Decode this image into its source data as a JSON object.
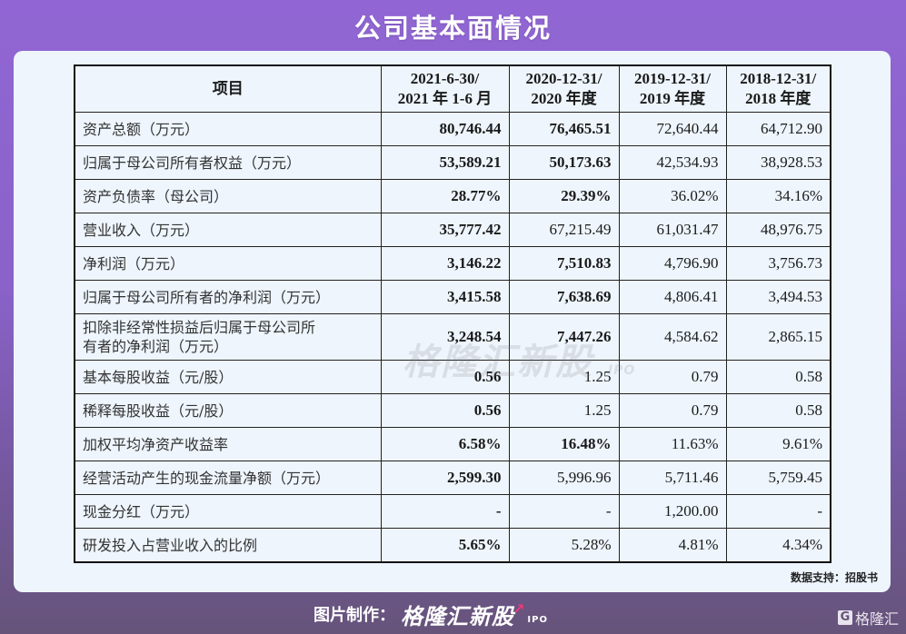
{
  "header": {
    "title": "公司基本面情况"
  },
  "table": {
    "columns": [
      "项目",
      "2021-6-30/\n2021 年 1-6 月",
      "2020-12-31/\n2020 年度",
      "2019-12-31/\n2019 年度",
      "2018-12-31/\n2018 年度"
    ],
    "column_lines": [
      [
        "项目"
      ],
      [
        "2021-6-30/",
        "2021 年 1-6 月"
      ],
      [
        "2020-12-31/",
        "2020 年度"
      ],
      [
        "2019-12-31/",
        "2019 年度"
      ],
      [
        "2018-12-31/",
        "2018 年度"
      ]
    ],
    "rows": [
      {
        "label": "资产总额（万元）",
        "values": [
          "80,746.44",
          "76,465.51",
          "72,640.44",
          "64,712.90"
        ],
        "bold": [
          true,
          true,
          false,
          false
        ]
      },
      {
        "label": "归属于母公司所有者权益（万元）",
        "values": [
          "53,589.21",
          "50,173.63",
          "42,534.93",
          "38,928.53"
        ],
        "bold": [
          true,
          true,
          false,
          false
        ]
      },
      {
        "label": "资产负债率（母公司）",
        "values": [
          "28.77%",
          "29.39%",
          "36.02%",
          "34.16%"
        ],
        "bold": [
          true,
          true,
          false,
          false
        ]
      },
      {
        "label": "营业收入（万元）",
        "values": [
          "35,777.42",
          "67,215.49",
          "61,031.47",
          "48,976.75"
        ],
        "bold": [
          true,
          false,
          false,
          false
        ]
      },
      {
        "label": "净利润（万元）",
        "values": [
          "3,146.22",
          "7,510.83",
          "4,796.90",
          "3,756.73"
        ],
        "bold": [
          true,
          true,
          false,
          false
        ]
      },
      {
        "label": "归属于母公司所有者的净利润（万元）",
        "values": [
          "3,415.58",
          "7,638.69",
          "4,806.41",
          "3,494.53"
        ],
        "bold": [
          true,
          true,
          false,
          false
        ]
      },
      {
        "label": "扣除非经常性损益后归属于母公司所有者的净利润（万元）",
        "label_lines": [
          "扣除非经常性损益后归属于母公司所",
          "有者的净利润（万元）"
        ],
        "values": [
          "3,248.54",
          "7,447.26",
          "4,584.62",
          "2,865.15"
        ],
        "bold": [
          true,
          true,
          false,
          false
        ],
        "tall": true
      },
      {
        "label": "基本每股收益（元/股）",
        "values": [
          "0.56",
          "1.25",
          "0.79",
          "0.58"
        ],
        "bold": [
          true,
          false,
          false,
          false
        ]
      },
      {
        "label": "稀释每股收益（元/股）",
        "values": [
          "0.56",
          "1.25",
          "0.79",
          "0.58"
        ],
        "bold": [
          true,
          false,
          false,
          false
        ]
      },
      {
        "label": "加权平均净资产收益率",
        "values": [
          "6.58%",
          "16.48%",
          "11.63%",
          "9.61%"
        ],
        "bold": [
          true,
          true,
          false,
          false
        ]
      },
      {
        "label": "经营活动产生的现金流量净额（万元）",
        "values": [
          "2,599.30",
          "5,996.96",
          "5,711.46",
          "5,759.45"
        ],
        "bold": [
          true,
          false,
          false,
          false
        ]
      },
      {
        "label": "现金分红（万元）",
        "values": [
          "-",
          "-",
          "1,200.00",
          "-"
        ],
        "bold": [
          true,
          false,
          false,
          false
        ]
      },
      {
        "label": "研发投入占营业收入的比例",
        "values": [
          "5.65%",
          "5.28%",
          "4.81%",
          "4.34%"
        ],
        "bold": [
          true,
          false,
          false,
          false
        ]
      }
    ]
  },
  "watermark": {
    "text": "格隆汇新股",
    "suffix": "IPO"
  },
  "source": {
    "text": "数据支持：招股书"
  },
  "footer": {
    "credit_label": "图片制作：",
    "brand": "格隆汇新股",
    "brand_suffix": "IPO",
    "logo_glyph": "G",
    "logo_text": "格隆汇"
  },
  "colors": {
    "bg_top": "#9166d4",
    "bg_bottom": "#66547a",
    "card": "#eef5fd",
    "accent_arrow": "#f0387a"
  }
}
